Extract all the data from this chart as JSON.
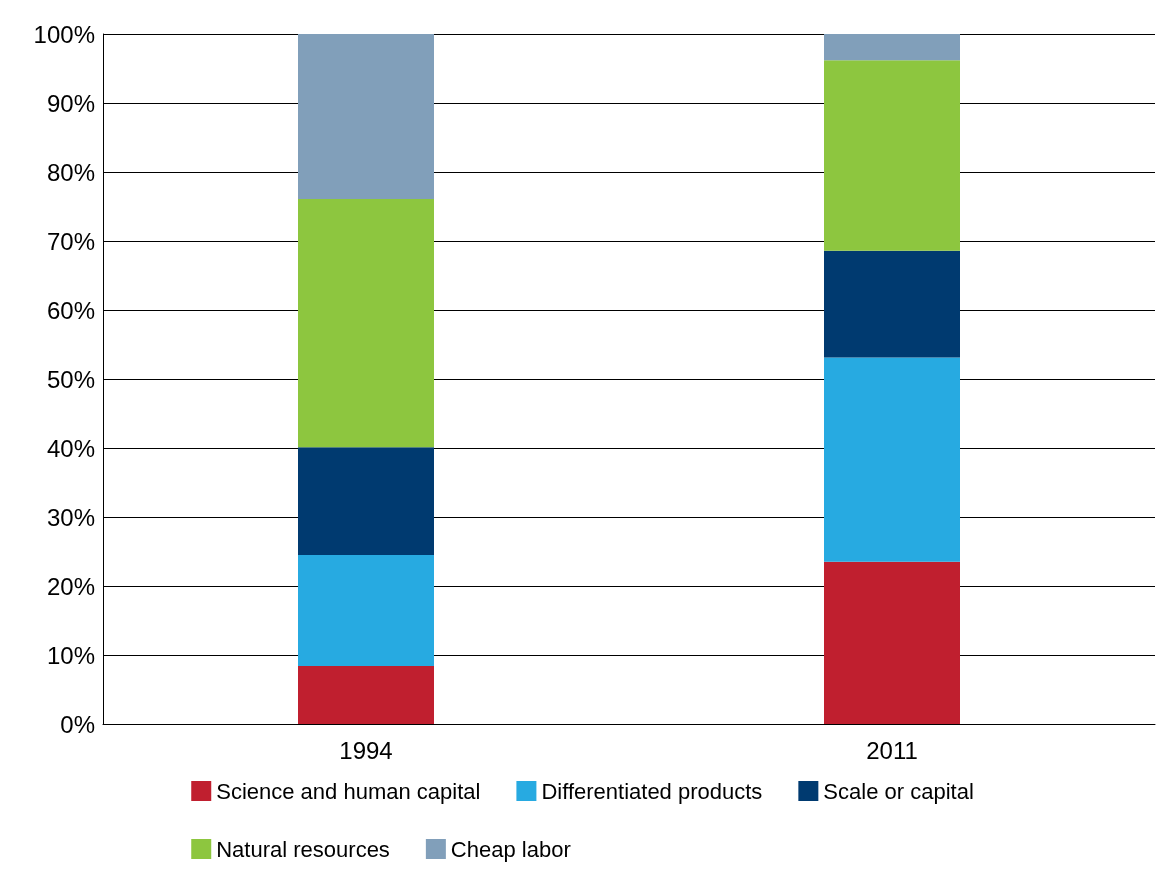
{
  "chart_data": {
    "type": "bar",
    "stacked": true,
    "categories": [
      "1994",
      "2011"
    ],
    "series": [
      {
        "name": "Science and human capital",
        "color": "#c01f2f",
        "values": [
          8.4,
          23.5
        ]
      },
      {
        "name": "Differentiated products",
        "color": "#27aae1",
        "values": [
          16.1,
          29.6
        ]
      },
      {
        "name": "Scale or capital",
        "color": "#003a70",
        "values": [
          15.6,
          15.5
        ]
      },
      {
        "name": "Natural resources",
        "color": "#8dc63f",
        "values": [
          36,
          27.6
        ]
      },
      {
        "name": "Cheap labor",
        "color": "#819fba",
        "values": [
          23.9,
          3.8
        ]
      }
    ],
    "ylim": [
      0,
      100
    ],
    "yticks": [
      {
        "value": 0,
        "label": "0%"
      },
      {
        "value": 10,
        "label": "10%"
      },
      {
        "value": 20,
        "label": "20%"
      },
      {
        "value": 30,
        "label": "30%"
      },
      {
        "value": 40,
        "label": "40%"
      },
      {
        "value": 50,
        "label": "50%"
      },
      {
        "value": 60,
        "label": "60%"
      },
      {
        "value": 70,
        "label": "70%"
      },
      {
        "value": 80,
        "label": "80%"
      },
      {
        "value": 90,
        "label": "90%"
      },
      {
        "value": 100,
        "label": "100%"
      }
    ],
    "grid": "y",
    "legend": "bottom"
  }
}
